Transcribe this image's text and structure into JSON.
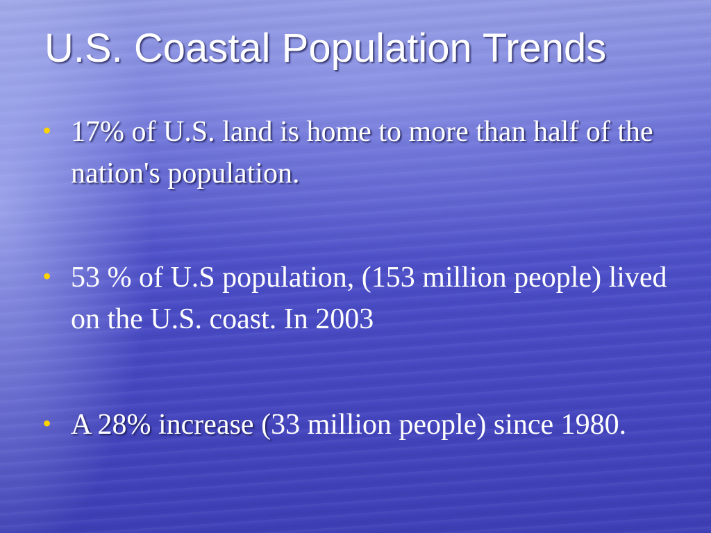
{
  "slide": {
    "title": "U.S. Coastal Population Trends",
    "bullets": [
      {
        "text_shadowed": "17% of U.S. land is home to more than half of the nation's population.",
        "text_plain": ""
      },
      {
        "text_shadowed": "",
        "text_plain": "53 % of U.S population, (153 million people) lived on the U.S. coast. In 2003"
      },
      {
        "text_shadowed": "A 28% increase (",
        "text_plain": "33 million people) since 1980."
      }
    ],
    "colors": {
      "bullet": "#ffd400",
      "text": "#ffffff",
      "background": "#4b4dc6"
    },
    "bullet_icon": "bullet-dot"
  }
}
